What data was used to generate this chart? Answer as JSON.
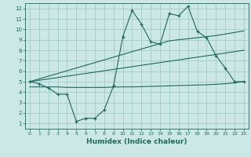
{
  "x": [
    0,
    1,
    2,
    3,
    4,
    5,
    6,
    7,
    8,
    9,
    10,
    11,
    12,
    13,
    14,
    15,
    16,
    17,
    18,
    19,
    20,
    21,
    22,
    23
  ],
  "line_jagged": [
    5.0,
    4.8,
    4.4,
    3.8,
    3.8,
    1.2,
    1.5,
    1.5,
    2.3,
    4.6,
    9.3,
    11.8,
    10.5,
    8.8,
    8.6,
    11.5,
    11.3,
    12.2,
    9.8,
    9.2,
    7.5,
    6.3,
    5.0,
    5.0
  ],
  "line_upper": [
    5.0,
    5.26,
    5.52,
    5.78,
    6.04,
    6.3,
    6.56,
    6.82,
    7.08,
    7.34,
    7.6,
    7.86,
    8.12,
    8.38,
    8.64,
    8.9,
    9.0,
    9.1,
    9.2,
    9.3,
    9.4,
    9.55,
    9.7,
    9.85
  ],
  "line_lower": [
    5.0,
    5.13,
    5.26,
    5.39,
    5.52,
    5.65,
    5.78,
    5.91,
    6.04,
    6.17,
    6.3,
    6.43,
    6.56,
    6.69,
    6.82,
    6.95,
    7.08,
    7.21,
    7.34,
    7.47,
    7.6,
    7.73,
    7.86,
    8.0
  ],
  "line_flat": [
    4.5,
    4.5,
    4.5,
    4.5,
    4.45,
    4.45,
    4.45,
    4.45,
    4.45,
    4.48,
    4.5,
    4.5,
    4.52,
    4.55,
    4.57,
    4.6,
    4.63,
    4.65,
    4.68,
    4.7,
    4.75,
    4.8,
    4.88,
    5.0
  ],
  "color": "#1a6b5a",
  "bg_color": "#cce8e6",
  "grid_color": "#aad0cc",
  "xlabel": "Humidex (Indice chaleur)",
  "ylim": [
    0.5,
    12.5
  ],
  "xlim": [
    -0.5,
    23.5
  ],
  "yticks": [
    1,
    2,
    3,
    4,
    5,
    6,
    7,
    8,
    9,
    10,
    11,
    12
  ],
  "xticks": [
    0,
    1,
    2,
    3,
    4,
    5,
    6,
    7,
    8,
    9,
    10,
    11,
    12,
    13,
    14,
    15,
    16,
    17,
    18,
    19,
    20,
    21,
    22,
    23
  ]
}
